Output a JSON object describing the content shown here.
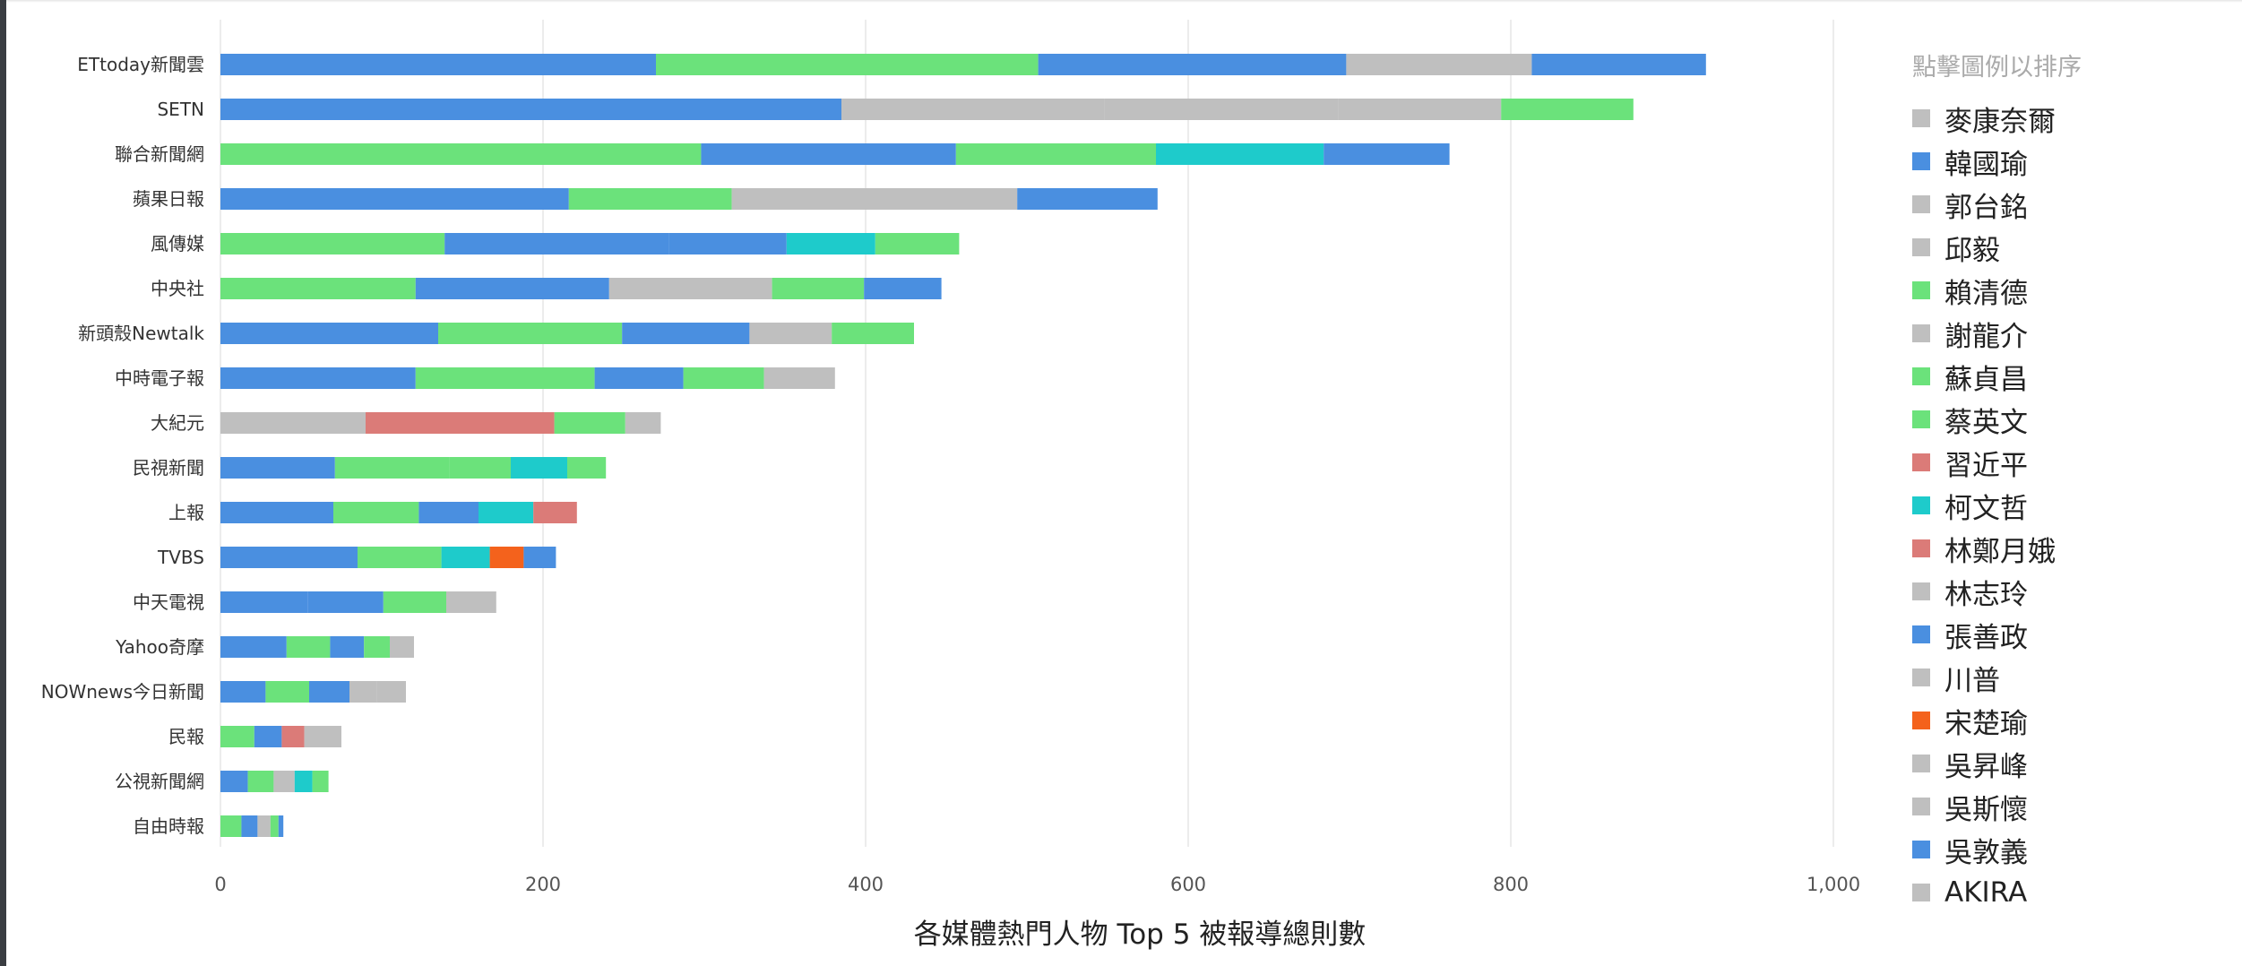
{
  "chart_data": {
    "type": "bar",
    "orientation": "horizontal",
    "stacked": true,
    "xlabel": "各媒體熱門人物 Top 5 被報導總則數",
    "xlim": [
      0,
      1000
    ],
    "xticks": [
      0,
      200,
      400,
      600,
      800,
      1000
    ],
    "xtick_labels": [
      "0",
      "200",
      "400",
      "600",
      "800",
      "1,000"
    ],
    "grid": true,
    "categories": [
      "ETtoday新聞雲",
      "SETN",
      "聯合新聞網",
      "蘋果日報",
      "風傳媒",
      "中央社",
      "新頭殼Newtalk",
      "中時電子報",
      "大紀元",
      "民視新聞",
      "上報",
      "TVBS",
      "中天電視",
      "Yahoo奇摩",
      "NOWnews今日新聞",
      "民報",
      "公視新聞網",
      "自由時報"
    ],
    "rows": [
      [
        {
          "p": "韓國瑜",
          "v": 270
        },
        {
          "p": "蔡英文",
          "v": 237
        },
        {
          "p": "韓國瑜",
          "v": 191
        },
        {
          "p": "郭台銘",
          "v": 115
        },
        {
          "p": "韓國瑜",
          "v": 108
        }
      ],
      [
        {
          "p": "韓國瑜",
          "v": 385
        },
        {
          "p": "郭台銘",
          "v": 163
        },
        {
          "p": "柯文哲",
          "v": 0
        },
        {
          "p": "郭台銘",
          "v": 145
        },
        {
          "p": "郭台銘",
          "v": 101
        },
        {
          "p": "蔡英文",
          "v": 82
        }
      ],
      [
        {
          "p": "蔡英文",
          "v": 298
        },
        {
          "p": "韓國瑜",
          "v": 158
        },
        {
          "p": "蔡英文",
          "v": 124
        },
        {
          "p": "柯文哲",
          "v": 104
        },
        {
          "p": "韓國瑜",
          "v": 78
        }
      ],
      [
        {
          "p": "韓國瑜",
          "v": 216
        },
        {
          "p": "蔡英文",
          "v": 101
        },
        {
          "p": "郭台銘",
          "v": 177
        },
        {
          "p": "韓國瑜",
          "v": 87
        }
      ],
      [
        {
          "p": "蔡英文",
          "v": 139
        },
        {
          "p": "韓國瑜",
          "v": 139
        },
        {
          "p": "韓國瑜",
          "v": 73
        },
        {
          "p": "柯文哲",
          "v": 55
        },
        {
          "p": "蔡英文",
          "v": 52
        }
      ],
      [
        {
          "p": "蔡英文",
          "v": 121
        },
        {
          "p": "韓國瑜",
          "v": 120
        },
        {
          "p": "郭台銘",
          "v": 101
        },
        {
          "p": "蔡英文",
          "v": 57
        },
        {
          "p": "韓國瑜",
          "v": 48
        }
      ],
      [
        {
          "p": "韓國瑜",
          "v": 135
        },
        {
          "p": "蔡英文",
          "v": 114
        },
        {
          "p": "韓國瑜",
          "v": 79
        },
        {
          "p": "郭台銘",
          "v": 51
        },
        {
          "p": "蔡英文",
          "v": 51
        }
      ],
      [
        {
          "p": "韓國瑜",
          "v": 121
        },
        {
          "p": "蔡英文",
          "v": 111
        },
        {
          "p": "韓國瑜",
          "v": 55
        },
        {
          "p": "蔡英文",
          "v": 50
        },
        {
          "p": "郭台銘",
          "v": 44
        }
      ],
      [
        {
          "p": "郭台銘",
          "v": 90
        },
        {
          "p": "習近平",
          "v": 117
        },
        {
          "p": "蔡英文",
          "v": 44
        },
        {
          "p": "郭台銘",
          "v": 22
        }
      ],
      [
        {
          "p": "韓國瑜",
          "v": 71
        },
        {
          "p": "蔡英文",
          "v": 71
        },
        {
          "p": "蔡英文",
          "v": 38
        },
        {
          "p": "柯文哲",
          "v": 35
        },
        {
          "p": "蔡英文",
          "v": 24
        }
      ],
      [
        {
          "p": "韓國瑜",
          "v": 70
        },
        {
          "p": "蔡英文",
          "v": 53
        },
        {
          "p": "韓國瑜",
          "v": 37
        },
        {
          "p": "柯文哲",
          "v": 34
        },
        {
          "p": "習近平",
          "v": 27
        }
      ],
      [
        {
          "p": "韓國瑜",
          "v": 85
        },
        {
          "p": "蔡英文",
          "v": 52
        },
        {
          "p": "柯文哲",
          "v": 30
        },
        {
          "p": "宋楚瑜",
          "v": 21
        },
        {
          "p": "韓國瑜",
          "v": 20
        }
      ],
      [
        {
          "p": "韓國瑜",
          "v": 54
        },
        {
          "p": "韓國瑜",
          "v": 47
        },
        {
          "p": "蔡英文",
          "v": 39
        },
        {
          "p": "郭台銘",
          "v": 31
        }
      ],
      [
        {
          "p": "韓國瑜",
          "v": 41
        },
        {
          "p": "蔡英文",
          "v": 27
        },
        {
          "p": "韓國瑜",
          "v": 21
        },
        {
          "p": "蔡英文",
          "v": 16
        },
        {
          "p": "郭台銘",
          "v": 15
        }
      ],
      [
        {
          "p": "韓國瑜",
          "v": 28
        },
        {
          "p": "蔡英文",
          "v": 27
        },
        {
          "p": "韓國瑜",
          "v": 25
        },
        {
          "p": "郭台銘",
          "v": 17
        },
        {
          "p": "郭台銘",
          "v": 18
        }
      ],
      [
        {
          "p": "蔡英文",
          "v": 21
        },
        {
          "p": "韓國瑜",
          "v": 17
        },
        {
          "p": "習近平",
          "v": 14
        },
        {
          "p": "郭台銘",
          "v": 23
        }
      ],
      [
        {
          "p": "韓國瑜",
          "v": 17
        },
        {
          "p": "蔡英文",
          "v": 16
        },
        {
          "p": "郭台銘",
          "v": 13
        },
        {
          "p": "柯文哲",
          "v": 11
        },
        {
          "p": "蔡英文",
          "v": 10
        }
      ],
      [
        {
          "p": "蔡英文",
          "v": 13
        },
        {
          "p": "韓國瑜",
          "v": 10
        },
        {
          "p": "郭台銘",
          "v": 8
        },
        {
          "p": "蔡英文",
          "v": 5
        },
        {
          "p": "韓國瑜",
          "v": 3
        }
      ]
    ],
    "legend_title": "點擊圖例以排序",
    "legend_placement": "right",
    "legend": [
      {
        "name": "麥康奈爾",
        "color": "#bfbfbf"
      },
      {
        "name": "韓國瑜",
        "color": "#4a8fe0"
      },
      {
        "name": "郭台銘",
        "color": "#bfbfbf"
      },
      {
        "name": "邱毅",
        "color": "#bfbfbf"
      },
      {
        "name": "賴清德",
        "color": "#6be27b"
      },
      {
        "name": "謝龍介",
        "color": "#bfbfbf"
      },
      {
        "name": "蘇貞昌",
        "color": "#6be27b"
      },
      {
        "name": "蔡英文",
        "color": "#6be27b"
      },
      {
        "name": "習近平",
        "color": "#db7b78"
      },
      {
        "name": "柯文哲",
        "color": "#1ecbcb"
      },
      {
        "name": "林鄭月娥",
        "color": "#db7b78"
      },
      {
        "name": "林志玲",
        "color": "#bfbfbf"
      },
      {
        "name": "張善政",
        "color": "#4a8fe0"
      },
      {
        "name": "川普",
        "color": "#bfbfbf"
      },
      {
        "name": "宋楚瑜",
        "color": "#f4621c"
      },
      {
        "name": "吳昇峰",
        "color": "#bfbfbf"
      },
      {
        "name": "吳斯懷",
        "color": "#bfbfbf"
      },
      {
        "name": "吳敦義",
        "color": "#4a8fe0"
      },
      {
        "name": "AKIRA",
        "color": "#bfbfbf"
      }
    ]
  }
}
